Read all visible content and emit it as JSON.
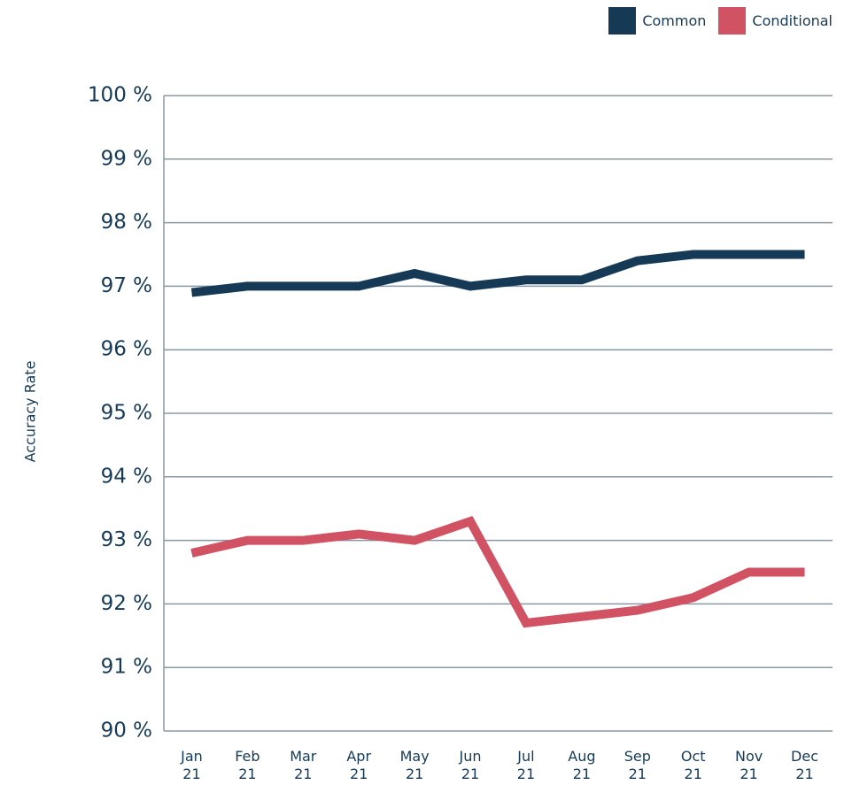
{
  "chart_data": {
    "type": "line",
    "y_label": "Accuracy Rate",
    "categories": [
      "Jan 21",
      "Feb 21",
      "Mar 21",
      "Apr 21",
      "May 21",
      "Jun 21",
      "Jul 21",
      "Aug 21",
      "Sep 21",
      "Oct 21",
      "Nov 21",
      "Dec 21"
    ],
    "series": [
      {
        "name": "Common",
        "color": "#163a56",
        "values": [
          96.9,
          97.0,
          97.0,
          97.0,
          97.2,
          97.0,
          97.1,
          97.1,
          97.4,
          97.5,
          97.5,
          97.5
        ]
      },
      {
        "name": "Conditional",
        "color": "#d05263",
        "values": [
          92.8,
          93.0,
          93.0,
          93.1,
          93.0,
          93.3,
          91.7,
          91.8,
          91.9,
          92.1,
          92.5,
          92.5
        ]
      }
    ],
    "ylim": [
      90,
      100
    ],
    "yticks": [
      {
        "value": 90,
        "label": "90 %"
      },
      {
        "value": 91,
        "label": "91 %"
      },
      {
        "value": 92,
        "label": "92 %"
      },
      {
        "value": 93,
        "label": "93 %"
      },
      {
        "value": 94,
        "label": "94 %"
      },
      {
        "value": 95,
        "label": "95 %"
      },
      {
        "value": 96,
        "label": "96 %"
      },
      {
        "value": 97,
        "label": "97 %"
      },
      {
        "value": 98,
        "label": "98 %"
      },
      {
        "value": 99,
        "label": "99 %"
      },
      {
        "value": 100,
        "label": "100 %"
      }
    ],
    "grid": true,
    "legend": "top-right"
  }
}
